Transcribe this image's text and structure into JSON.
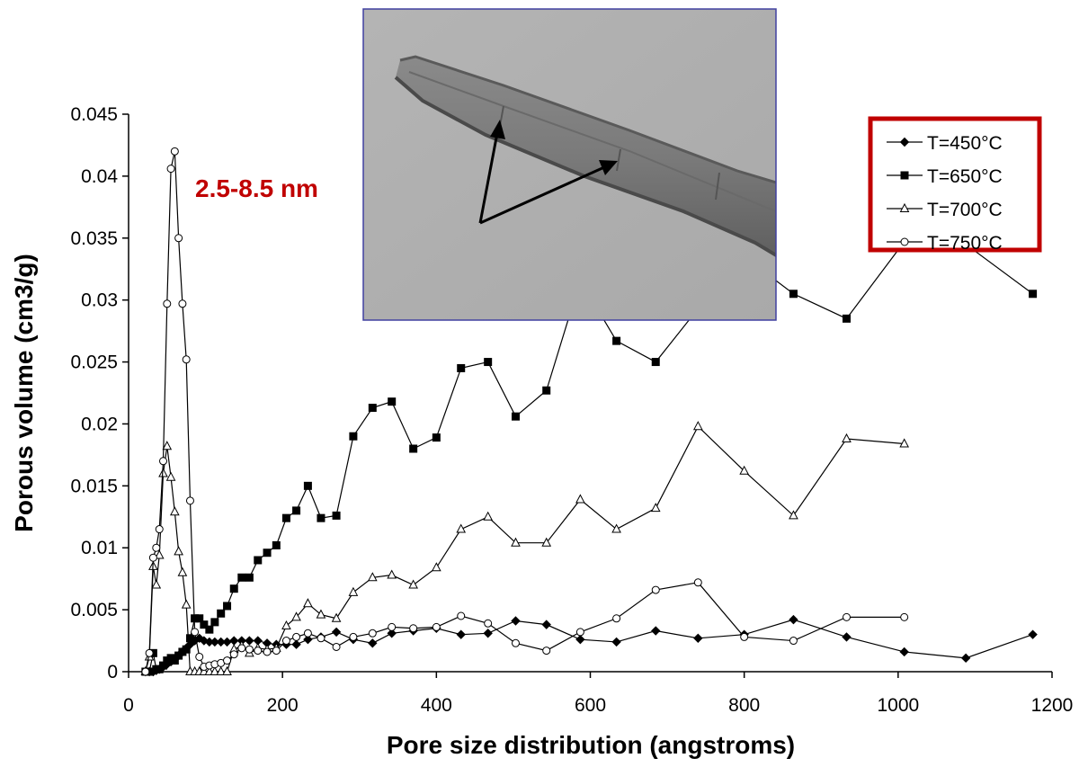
{
  "chart_data": {
    "type": "line",
    "title": "",
    "xlabel": "Pore size distribution (angstroms)",
    "ylabel": "Porous volume (cm3/g)",
    "xlim": [
      0,
      1200
    ],
    "ylim": [
      0,
      0.045
    ],
    "x_ticks": [
      "0",
      "200",
      "400",
      "600",
      "800",
      "1000",
      "1200"
    ],
    "y_ticks": [
      "0",
      "0.005",
      "0.01",
      "0.015",
      "0.02",
      "0.025",
      "0.03",
      "0.035",
      "0.04",
      "0.045"
    ],
    "grid": false,
    "legend_position": "top-right",
    "legend_border_color": "#c00000",
    "annotation": {
      "text": "2.5-8.5 nm",
      "color": "#c00000"
    },
    "inset": {
      "description_icon": "tem-micrograph-nanotube",
      "arrow_count": 2
    },
    "series": [
      {
        "name": "T=450°C",
        "marker": "diamond-filled",
        "points": [
          [
            22,
            0
          ],
          [
            27,
            0
          ],
          [
            32,
            0
          ],
          [
            36,
            0.0001
          ],
          [
            40,
            0.0002
          ],
          [
            45,
            0.0004
          ],
          [
            50,
            0.0006
          ],
          [
            55,
            0.0008
          ],
          [
            60,
            0.001
          ],
          [
            65,
            0.0013
          ],
          [
            70,
            0.0016
          ],
          [
            75,
            0.0019
          ],
          [
            80,
            0.0022
          ],
          [
            86,
            0.0025
          ],
          [
            92,
            0.0027
          ],
          [
            98,
            0.0025
          ],
          [
            105,
            0.0024
          ],
          [
            112,
            0.0024
          ],
          [
            120,
            0.0024
          ],
          [
            128,
            0.0024
          ],
          [
            137,
            0.0025
          ],
          [
            147,
            0.0025
          ],
          [
            157,
            0.0025
          ],
          [
            168,
            0.0025
          ],
          [
            180,
            0.0023
          ],
          [
            192,
            0.0022
          ],
          [
            205,
            0.0022
          ],
          [
            218,
            0.0022
          ],
          [
            233,
            0.0026
          ],
          [
            250,
            0.0028
          ],
          [
            270,
            0.0032
          ],
          [
            292,
            0.0026
          ],
          [
            317,
            0.0023
          ],
          [
            342,
            0.0031
          ],
          [
            370,
            0.0033
          ],
          [
            400,
            0.0035
          ],
          [
            432,
            0.003
          ],
          [
            467,
            0.0031
          ],
          [
            503,
            0.0041
          ],
          [
            543,
            0.0038
          ],
          [
            587,
            0.0026
          ],
          [
            634,
            0.0024
          ],
          [
            685,
            0.0033
          ],
          [
            740,
            0.0027
          ],
          [
            800,
            0.003
          ],
          [
            864,
            0.0042
          ],
          [
            933,
            0.0028
          ],
          [
            1008,
            0.0016
          ],
          [
            1088,
            0.0011
          ],
          [
            1175,
            0.003
          ]
        ]
      },
      {
        "name": "T=650°C",
        "marker": "square-filled",
        "points": [
          [
            22,
            0
          ],
          [
            27,
            0
          ],
          [
            32,
            0.0015
          ],
          [
            36,
            0.0002
          ],
          [
            40,
            0.0002
          ],
          [
            45,
            0.0005
          ],
          [
            50,
            0.0009
          ],
          [
            55,
            0.0011
          ],
          [
            60,
            0.0009
          ],
          [
            65,
            0.0013
          ],
          [
            70,
            0.0016
          ],
          [
            75,
            0.0018
          ],
          [
            80,
            0.0027
          ],
          [
            86,
            0.0043
          ],
          [
            92,
            0.0043
          ],
          [
            98,
            0.0038
          ],
          [
            105,
            0.0034
          ],
          [
            112,
            0.004
          ],
          [
            120,
            0.0047
          ],
          [
            128,
            0.0053
          ],
          [
            137,
            0.0067
          ],
          [
            147,
            0.0076
          ],
          [
            157,
            0.0076
          ],
          [
            168,
            0.009
          ],
          [
            180,
            0.0096
          ],
          [
            192,
            0.0102
          ],
          [
            205,
            0.0124
          ],
          [
            218,
            0.013
          ],
          [
            233,
            0.015
          ],
          [
            250,
            0.0124
          ],
          [
            270,
            0.0126
          ],
          [
            292,
            0.019
          ],
          [
            317,
            0.0213
          ],
          [
            342,
            0.0218
          ],
          [
            370,
            0.018
          ],
          [
            400,
            0.0189
          ],
          [
            432,
            0.0245
          ],
          [
            467,
            0.025
          ],
          [
            503,
            0.0206
          ],
          [
            543,
            0.0227
          ],
          [
            587,
            0.0316
          ],
          [
            634,
            0.0267
          ],
          [
            685,
            0.025
          ],
          [
            740,
            0.0293
          ],
          [
            800,
            0.0335
          ],
          [
            864,
            0.0305
          ],
          [
            933,
            0.0285
          ],
          [
            1008,
            0.0347
          ],
          [
            1088,
            0.0345
          ],
          [
            1175,
            0.0305
          ]
        ]
      },
      {
        "name": "T=700°C",
        "marker": "triangle-open",
        "points": [
          [
            22,
            0
          ],
          [
            27,
            0.0012
          ],
          [
            32,
            0.0085
          ],
          [
            36,
            0.007
          ],
          [
            40,
            0.0094
          ],
          [
            45,
            0.016
          ],
          [
            50,
            0.0182
          ],
          [
            55,
            0.0157
          ],
          [
            60,
            0.0129
          ],
          [
            65,
            0.0097
          ],
          [
            70,
            0.008
          ],
          [
            75,
            0.0054
          ],
          [
            80,
            0
          ],
          [
            86,
            0
          ],
          [
            92,
            0
          ],
          [
            98,
            0
          ],
          [
            105,
            0
          ],
          [
            112,
            0
          ],
          [
            120,
            0
          ],
          [
            128,
            0
          ],
          [
            137,
            0.0018
          ],
          [
            147,
            0.0021
          ],
          [
            157,
            0.0015
          ],
          [
            168,
            0.0019
          ],
          [
            180,
            0.0018
          ],
          [
            192,
            0.0019
          ],
          [
            205,
            0.0037
          ],
          [
            218,
            0.0044
          ],
          [
            233,
            0.0055
          ],
          [
            250,
            0.0046
          ],
          [
            270,
            0.0043
          ],
          [
            292,
            0.0064
          ],
          [
            317,
            0.0076
          ],
          [
            342,
            0.0078
          ],
          [
            370,
            0.007
          ],
          [
            400,
            0.0084
          ],
          [
            432,
            0.0115
          ],
          [
            467,
            0.0125
          ],
          [
            503,
            0.0104
          ],
          [
            543,
            0.0104
          ],
          [
            587,
            0.0139
          ],
          [
            634,
            0.0115
          ],
          [
            685,
            0.0132
          ],
          [
            740,
            0.0198
          ],
          [
            800,
            0.0162
          ],
          [
            864,
            0.0126
          ],
          [
            933,
            0.0188
          ],
          [
            1008,
            0.0184
          ]
        ]
      },
      {
        "name": "T=750°C",
        "marker": "circle-open",
        "points": [
          [
            22,
            0
          ],
          [
            27,
            0.0015
          ],
          [
            32,
            0.0092
          ],
          [
            36,
            0.01
          ],
          [
            40,
            0.0115
          ],
          [
            45,
            0.017
          ],
          [
            50,
            0.0297
          ],
          [
            55,
            0.0406
          ],
          [
            60,
            0.042
          ],
          [
            65,
            0.035
          ],
          [
            70,
            0.0297
          ],
          [
            75,
            0.0252
          ],
          [
            80,
            0.0138
          ],
          [
            86,
            0.0032
          ],
          [
            92,
            0.0012
          ],
          [
            98,
            0.0004
          ],
          [
            105,
            0.0005
          ],
          [
            112,
            0.0006
          ],
          [
            120,
            0.0007
          ],
          [
            128,
            0.0009
          ],
          [
            137,
            0.0014
          ],
          [
            147,
            0.0019
          ],
          [
            157,
            0.0018
          ],
          [
            168,
            0.0017
          ],
          [
            180,
            0.0016
          ],
          [
            192,
            0.0017
          ],
          [
            205,
            0.0025
          ],
          [
            218,
            0.0028
          ],
          [
            233,
            0.0031
          ],
          [
            250,
            0.0027
          ],
          [
            270,
            0.002
          ],
          [
            292,
            0.0028
          ],
          [
            317,
            0.0031
          ],
          [
            342,
            0.0036
          ],
          [
            370,
            0.0035
          ],
          [
            400,
            0.0036
          ],
          [
            432,
            0.0045
          ],
          [
            467,
            0.0039
          ],
          [
            503,
            0.0023
          ],
          [
            543,
            0.0017
          ],
          [
            587,
            0.0032
          ],
          [
            634,
            0.0043
          ],
          [
            685,
            0.0066
          ],
          [
            740,
            0.0072
          ],
          [
            800,
            0.0028
          ],
          [
            864,
            0.0025
          ],
          [
            933,
            0.0044
          ],
          [
            1008,
            0.0044
          ]
        ]
      }
    ]
  }
}
